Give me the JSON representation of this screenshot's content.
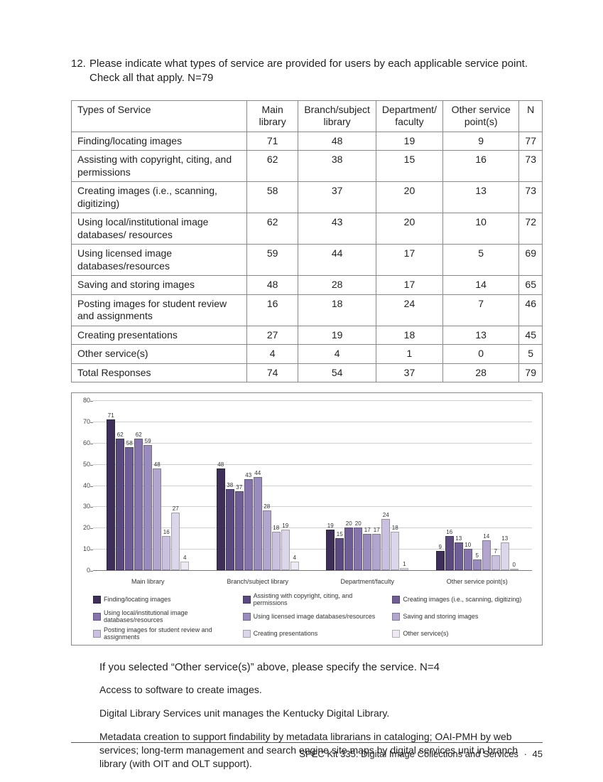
{
  "question": {
    "number": "12.",
    "text": "Please indicate what types of service are provided for users by each applicable service point. Check all that apply. N=79"
  },
  "table": {
    "columns": [
      "Types of Service",
      "Main library",
      "Branch/subject library",
      "Department/ faculty",
      "Other service point(s)",
      "N"
    ],
    "rows": [
      [
        "Finding/locating images",
        71,
        48,
        19,
        9,
        77
      ],
      [
        "Assisting with copyright, citing, and permissions",
        62,
        38,
        15,
        16,
        73
      ],
      [
        "Creating images (i.e., scanning, digitizing)",
        58,
        37,
        20,
        13,
        73
      ],
      [
        "Using local/institutional image databases/ resources",
        62,
        43,
        20,
        10,
        72
      ],
      [
        "Using licensed image databases/resources",
        59,
        44,
        17,
        5,
        69
      ],
      [
        "Saving and storing images",
        48,
        28,
        17,
        14,
        65
      ],
      [
        "Posting images for student review and assignments",
        16,
        18,
        24,
        7,
        46
      ],
      [
        "Creating presentations",
        27,
        19,
        18,
        13,
        45
      ],
      [
        "Other service(s)",
        4,
        4,
        1,
        0,
        5
      ],
      [
        "Total Responses",
        74,
        54,
        37,
        28,
        79
      ]
    ]
  },
  "chart": {
    "type": "grouped-bar",
    "y_max": 80,
    "y_tick_step": 10,
    "grid_color": "#cfcfcf",
    "axis_color": "#777777",
    "background_color": "#ffffff",
    "series": [
      {
        "label": "Finding/locating images",
        "color": "#3d2f58"
      },
      {
        "label": "Assisting with copyright, citing, and permissions",
        "color": "#5a4a7f"
      },
      {
        "label": "Creating images (i.e., scanning, digitizing)",
        "color": "#6f5d95"
      },
      {
        "label": "Using local/institutional image databases/resources",
        "color": "#8674ac"
      },
      {
        "label": "Using licensed image databases/resources",
        "color": "#9a8bbd"
      },
      {
        "label": "Saving and storing images",
        "color": "#b2a6cf"
      },
      {
        "label": "Posting images for student review and assignments",
        "color": "#c9c1df"
      },
      {
        "label": "Creating presentations",
        "color": "#dcd6ea"
      },
      {
        "label": "Other service(s)",
        "color": "#eeeaf4"
      }
    ],
    "categories": [
      "Main library",
      "Branch/subject library",
      "Department/faculty",
      "Other service point(s)"
    ],
    "data": [
      [
        71,
        62,
        58,
        62,
        59,
        48,
        16,
        27,
        4
      ],
      [
        48,
        38,
        37,
        43,
        44,
        28,
        18,
        19,
        4
      ],
      [
        19,
        15,
        20,
        20,
        17,
        17,
        24,
        18,
        1
      ],
      [
        9,
        16,
        13,
        10,
        5,
        14,
        7,
        13,
        0
      ]
    ]
  },
  "subhead": "If you selected “Other service(s)” above, please specify the service. N=4",
  "responses": [
    "Access to software to create images.",
    "Digital Library Services unit manages the Kentucky Digital Library.",
    "Metadata creation to support findability by metadata librarians in cataloging; OAI-PMH by web services; long-term management and search engine site maps by digital services unit in branch library (with OIT and OLT support)."
  ],
  "footer": {
    "title": "SPEC Kit 335: Digital Image Collections and Services",
    "page": "45"
  }
}
